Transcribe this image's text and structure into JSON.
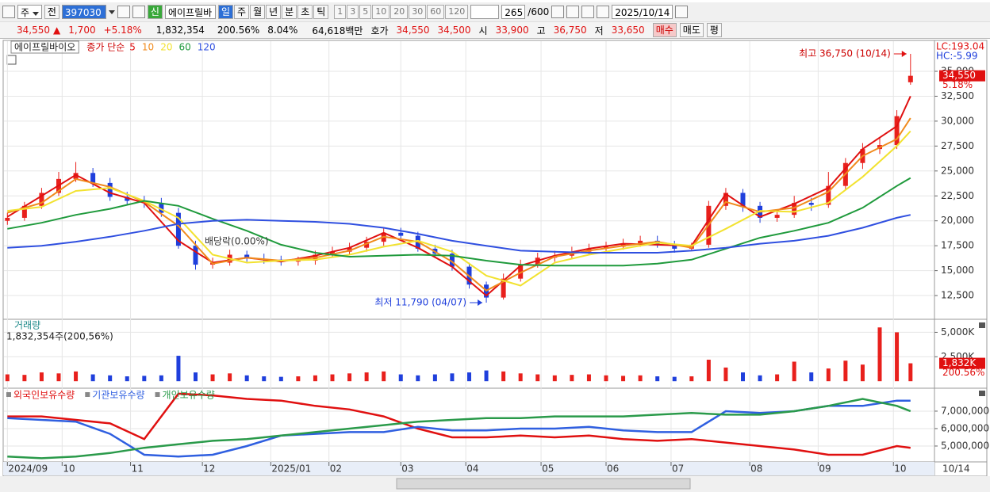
{
  "toolbar": {
    "market": "주",
    "prev": "전",
    "code": "397030",
    "new_badge": "신",
    "name": "에이프릴바",
    "periods": [
      "일",
      "주",
      "월",
      "년",
      "분",
      "초",
      "틱"
    ],
    "intervals": [
      "1",
      "3",
      "5",
      "10",
      "20",
      "30",
      "60",
      "120"
    ],
    "count": "265",
    "count_max": "/600",
    "date": "2025/10/14"
  },
  "quote": {
    "price": "34,550",
    "arrow": "▲",
    "change": "1,700",
    "change_pct": "+5.18%",
    "volume": "1,832,354",
    "volume_ratio": "200.56%",
    "turnover": "8.04%",
    "amount": "64,618백만",
    "ask_label": "호가",
    "ask": "34,550",
    "bid": "34,500",
    "open_label": "시",
    "open": "33,900",
    "high_label": "고",
    "high": "36,750",
    "low_label": "저",
    "low": "33,650",
    "buy": "매수",
    "sell": "매도",
    "avg": "평"
  },
  "chart_data": [
    {
      "type": "candlestick",
      "name": "에이프릴바이오",
      "ma_label": "종가 단순",
      "lc": "LC:193.04",
      "hc": "HC:-5.99",
      "last_label": "34,550",
      "last_change": "5.18%",
      "up_color": "#e8201c",
      "down_color": "#1f3fdc",
      "xlim": [
        -1,
        271
      ],
      "ylim": [
        10120,
        38020
      ],
      "yticks": [
        {
          "value": 12500,
          "label": "12,500"
        },
        {
          "value": 15000,
          "label": "15,000"
        },
        {
          "value": 17500,
          "label": "17,500"
        },
        {
          "value": 20000,
          "label": "20,000"
        },
        {
          "value": 22500,
          "label": "22,500"
        },
        {
          "value": 25000,
          "label": "25,000"
        },
        {
          "value": 27500,
          "label": "27,500"
        },
        {
          "value": 30000,
          "label": "30,000"
        },
        {
          "value": 32500,
          "label": "32,500"
        },
        {
          "value": 35000,
          "label": "35,000"
        }
      ],
      "x": [
        0,
        5,
        10,
        15,
        20,
        25,
        30,
        35,
        40,
        45,
        50,
        55,
        60,
        65,
        70,
        75,
        80,
        85,
        90,
        95,
        100,
        105,
        110,
        115,
        120,
        125,
        130,
        135,
        140,
        145,
        150,
        155,
        160,
        165,
        170,
        175,
        180,
        185,
        190,
        195,
        200,
        205,
        210,
        215,
        220,
        225,
        230,
        235,
        240,
        245,
        250,
        255,
        260,
        264
      ],
      "open": [
        20000,
        20300,
        21500,
        22800,
        24200,
        24800,
        23800,
        22400,
        22000,
        21800,
        20800,
        17500,
        15600,
        15800,
        16600,
        16200,
        16100,
        15900,
        16000,
        16600,
        16900,
        17300,
        17900,
        18800,
        18500,
        17200,
        16700,
        15400,
        13600,
        12300,
        14200,
        15600,
        16300,
        16500,
        16900,
        17200,
        17400,
        17700,
        18000,
        17600,
        17200,
        17600,
        21500,
        22800,
        21500,
        20300,
        20600,
        21800,
        21600,
        23500,
        25800,
        27200,
        27600,
        33900
      ],
      "high": [
        20800,
        21900,
        23300,
        24900,
        25900,
        25300,
        24300,
        22900,
        22500,
        22300,
        21300,
        18000,
        16300,
        17100,
        17000,
        16700,
        16500,
        16400,
        17000,
        17400,
        17800,
        18400,
        19300,
        19300,
        18900,
        17600,
        17100,
        15800,
        13900,
        14700,
        16100,
        16800,
        17000,
        17400,
        17700,
        17900,
        18200,
        18500,
        18500,
        18000,
        17800,
        22000,
        23300,
        23200,
        21900,
        21100,
        22500,
        22300,
        24900,
        26300,
        27800,
        28300,
        31100,
        36750
      ],
      "low": [
        19600,
        20000,
        21200,
        22500,
        23900,
        23400,
        22000,
        21600,
        21300,
        20400,
        17200,
        15100,
        15200,
        15500,
        15900,
        15700,
        15500,
        15500,
        15600,
        16300,
        16600,
        16900,
        17500,
        18100,
        16900,
        16300,
        15000,
        13200,
        11790,
        12100,
        13900,
        15300,
        15900,
        16200,
        16600,
        16900,
        17100,
        17400,
        17300,
        16800,
        17000,
        17300,
        21100,
        20900,
        19800,
        19900,
        20300,
        21000,
        21300,
        23100,
        25200,
        26700,
        27200,
        33650
      ],
      "close": [
        20300,
        21500,
        22800,
        24200,
        24800,
        23800,
        22400,
        22000,
        21800,
        20800,
        17500,
        15600,
        15800,
        16600,
        16200,
        16100,
        15900,
        16000,
        16600,
        16900,
        17300,
        17900,
        18800,
        18500,
        17200,
        16700,
        15400,
        13600,
        12300,
        14200,
        15600,
        16300,
        16500,
        16900,
        17200,
        17400,
        17700,
        18000,
        17600,
        17200,
        17600,
        21500,
        22800,
        21500,
        20300,
        20600,
        21800,
        21600,
        23500,
        25800,
        27200,
        27600,
        30500,
        34550
      ],
      "ma": {
        "x": [
          0,
          10,
          20,
          30,
          40,
          50,
          60,
          70,
          80,
          90,
          100,
          110,
          120,
          130,
          140,
          150,
          160,
          170,
          180,
          190,
          200,
          210,
          220,
          230,
          240,
          250,
          260,
          264
        ],
        "series": [
          {
            "name": "5",
            "color": "#e01010",
            "values": [
              20400,
              22500,
              24600,
              22800,
              21800,
              18000,
              15800,
              16300,
              15900,
              16500,
              17300,
              18800,
              17300,
              15400,
              12500,
              15500,
              16500,
              17200,
              17700,
              17600,
              17500,
              22700,
              20400,
              21700,
              23300,
              27200,
              29500,
              32500
            ]
          },
          {
            "name": "10",
            "color": "#f08a1c",
            "values": [
              20800,
              21800,
              24200,
              23400,
              21900,
              19500,
              15700,
              16300,
              16000,
              16300,
              17000,
              18400,
              17900,
              15900,
              13000,
              14800,
              16400,
              17000,
              17500,
              17900,
              17300,
              21900,
              20900,
              21300,
              22900,
              26500,
              28200,
              30300
            ]
          },
          {
            "name": "20",
            "color": "#f2e230",
            "values": [
              21000,
              21400,
              23000,
              23300,
              22000,
              20300,
              16600,
              15800,
              16000,
              16100,
              16600,
              17400,
              18000,
              16900,
              14500,
              13500,
              15800,
              16600,
              17200,
              17800,
              17500,
              19200,
              21000,
              20900,
              21800,
              24400,
              27500,
              29000
            ]
          },
          {
            "name": "60",
            "color": "#1f9a3c",
            "values": [
              19200,
              19800,
              20600,
              21200,
              22000,
              21500,
              20200,
              19000,
              17600,
              16800,
              16400,
              16500,
              16600,
              16500,
              16000,
              15600,
              15500,
              15500,
              15500,
              15700,
              16100,
              17200,
              18300,
              19000,
              19800,
              21300,
              23500,
              24300
            ]
          },
          {
            "name": "120",
            "color": "#2f4fe0",
            "values": [
              17300,
              17500,
              17900,
              18400,
              19000,
              19700,
              20000,
              20100,
              20000,
              19900,
              19700,
              19300,
              18700,
              18000,
              17500,
              17000,
              16900,
              16800,
              16800,
              16800,
              17000,
              17300,
              17700,
              18000,
              18500,
              19300,
              20300,
              20600
            ]
          }
        ]
      },
      "annotations": [
        {
          "label": "최고 36,750 (10/14)",
          "x": 264,
          "value": 36750
        },
        {
          "label": "최저 11,790 (04/07)",
          "x": 140,
          "value": 11790
        },
        {
          "label": "배당락(0.00%)",
          "x": 67
        }
      ]
    },
    {
      "type": "bar",
      "title": "거래량",
      "subtitle": "1,832,354주(200,56%)",
      "last_label": "1,832K",
      "last_pct": "200.56%",
      "xlim": [
        -1,
        271
      ],
      "ylim": [
        -390,
        6250
      ],
      "yticks": [
        {
          "value": 2500,
          "label": "2,500K"
        },
        {
          "value": 5000,
          "label": "5,000K"
        }
      ],
      "x": [
        0,
        5,
        10,
        15,
        20,
        25,
        30,
        35,
        40,
        45,
        50,
        55,
        60,
        65,
        70,
        75,
        80,
        85,
        90,
        95,
        100,
        105,
        110,
        115,
        120,
        125,
        130,
        135,
        140,
        145,
        150,
        155,
        160,
        165,
        170,
        175,
        180,
        185,
        190,
        195,
        200,
        205,
        210,
        215,
        220,
        225,
        230,
        235,
        240,
        245,
        250,
        255,
        260,
        264
      ],
      "values": [
        700,
        650,
        900,
        800,
        1000,
        700,
        600,
        500,
        550,
        600,
        2600,
        900,
        700,
        800,
        600,
        500,
        450,
        500,
        600,
        700,
        800,
        900,
        1000,
        700,
        600,
        700,
        800,
        900,
        1100,
        1000,
        800,
        700,
        600,
        650,
        700,
        600,
        550,
        600,
        500,
        450,
        500,
        2200,
        1400,
        900,
        600,
        700,
        2000,
        900,
        1300,
        2100,
        1700,
        5500,
        5000,
        1832
      ]
    },
    {
      "type": "line",
      "xlim": [
        -1,
        271
      ],
      "ylim": [
        4090000,
        8270000
      ],
      "last_date": "10/14",
      "yticks": [
        {
          "value": 5000000,
          "label": "5,000,000"
        },
        {
          "value": 6000000,
          "label": "6,000,000"
        },
        {
          "value": 7000000,
          "label": "7,000,000"
        }
      ],
      "xticks": [
        {
          "value": 0,
          "label": "2024/09"
        },
        {
          "value": 16,
          "label": "10"
        },
        {
          "value": 36,
          "label": "11"
        },
        {
          "value": 57,
          "label": "12"
        },
        {
          "value": 77,
          "label": "2025/01"
        },
        {
          "value": 94,
          "label": "02"
        },
        {
          "value": 115,
          "label": "03"
        },
        {
          "value": 134,
          "label": "04"
        },
        {
          "value": 156,
          "label": "05"
        },
        {
          "value": 175,
          "label": "06"
        },
        {
          "value": 194,
          "label": "07"
        },
        {
          "value": 217,
          "label": "08"
        },
        {
          "value": 237,
          "label": "09"
        },
        {
          "value": 259,
          "label": "10"
        }
      ],
      "x": [
        0,
        10,
        20,
        30,
        40,
        50,
        60,
        70,
        80,
        90,
        100,
        110,
        120,
        130,
        140,
        150,
        160,
        170,
        180,
        190,
        200,
        210,
        220,
        230,
        240,
        250,
        260,
        264
      ],
      "series": [
        {
          "name": "외국인보유수량",
          "color": "#e01010",
          "values": [
            6700000,
            6700000,
            6500000,
            6300000,
            5400000,
            8000000,
            7900000,
            7700000,
            7600000,
            7300000,
            7100000,
            6700000,
            6000000,
            5500000,
            5500000,
            5600000,
            5500000,
            5600000,
            5400000,
            5300000,
            5400000,
            5200000,
            5000000,
            4800000,
            4500000,
            4500000,
            5000000,
            4900000
          ]
        },
        {
          "name": "기관보유수량",
          "color": "#2f5fe0",
          "values": [
            6600000,
            6500000,
            6400000,
            5700000,
            4500000,
            4400000,
            4500000,
            5000000,
            5600000,
            5700000,
            5800000,
            5800000,
            6100000,
            5900000,
            5900000,
            6000000,
            6000000,
            6100000,
            5900000,
            5800000,
            5800000,
            7000000,
            6900000,
            7000000,
            7300000,
            7300000,
            7600000,
            7600000
          ]
        },
        {
          "name": "개인보유수량",
          "color": "#2a9a4a",
          "values": [
            4400000,
            4300000,
            4400000,
            4600000,
            4900000,
            5100000,
            5300000,
            5400000,
            5600000,
            5800000,
            6000000,
            6200000,
            6400000,
            6500000,
            6600000,
            6600000,
            6700000,
            6700000,
            6700000,
            6800000,
            6900000,
            6800000,
            6800000,
            7000000,
            7300000,
            7700000,
            7300000,
            7000000
          ]
        }
      ]
    }
  ]
}
